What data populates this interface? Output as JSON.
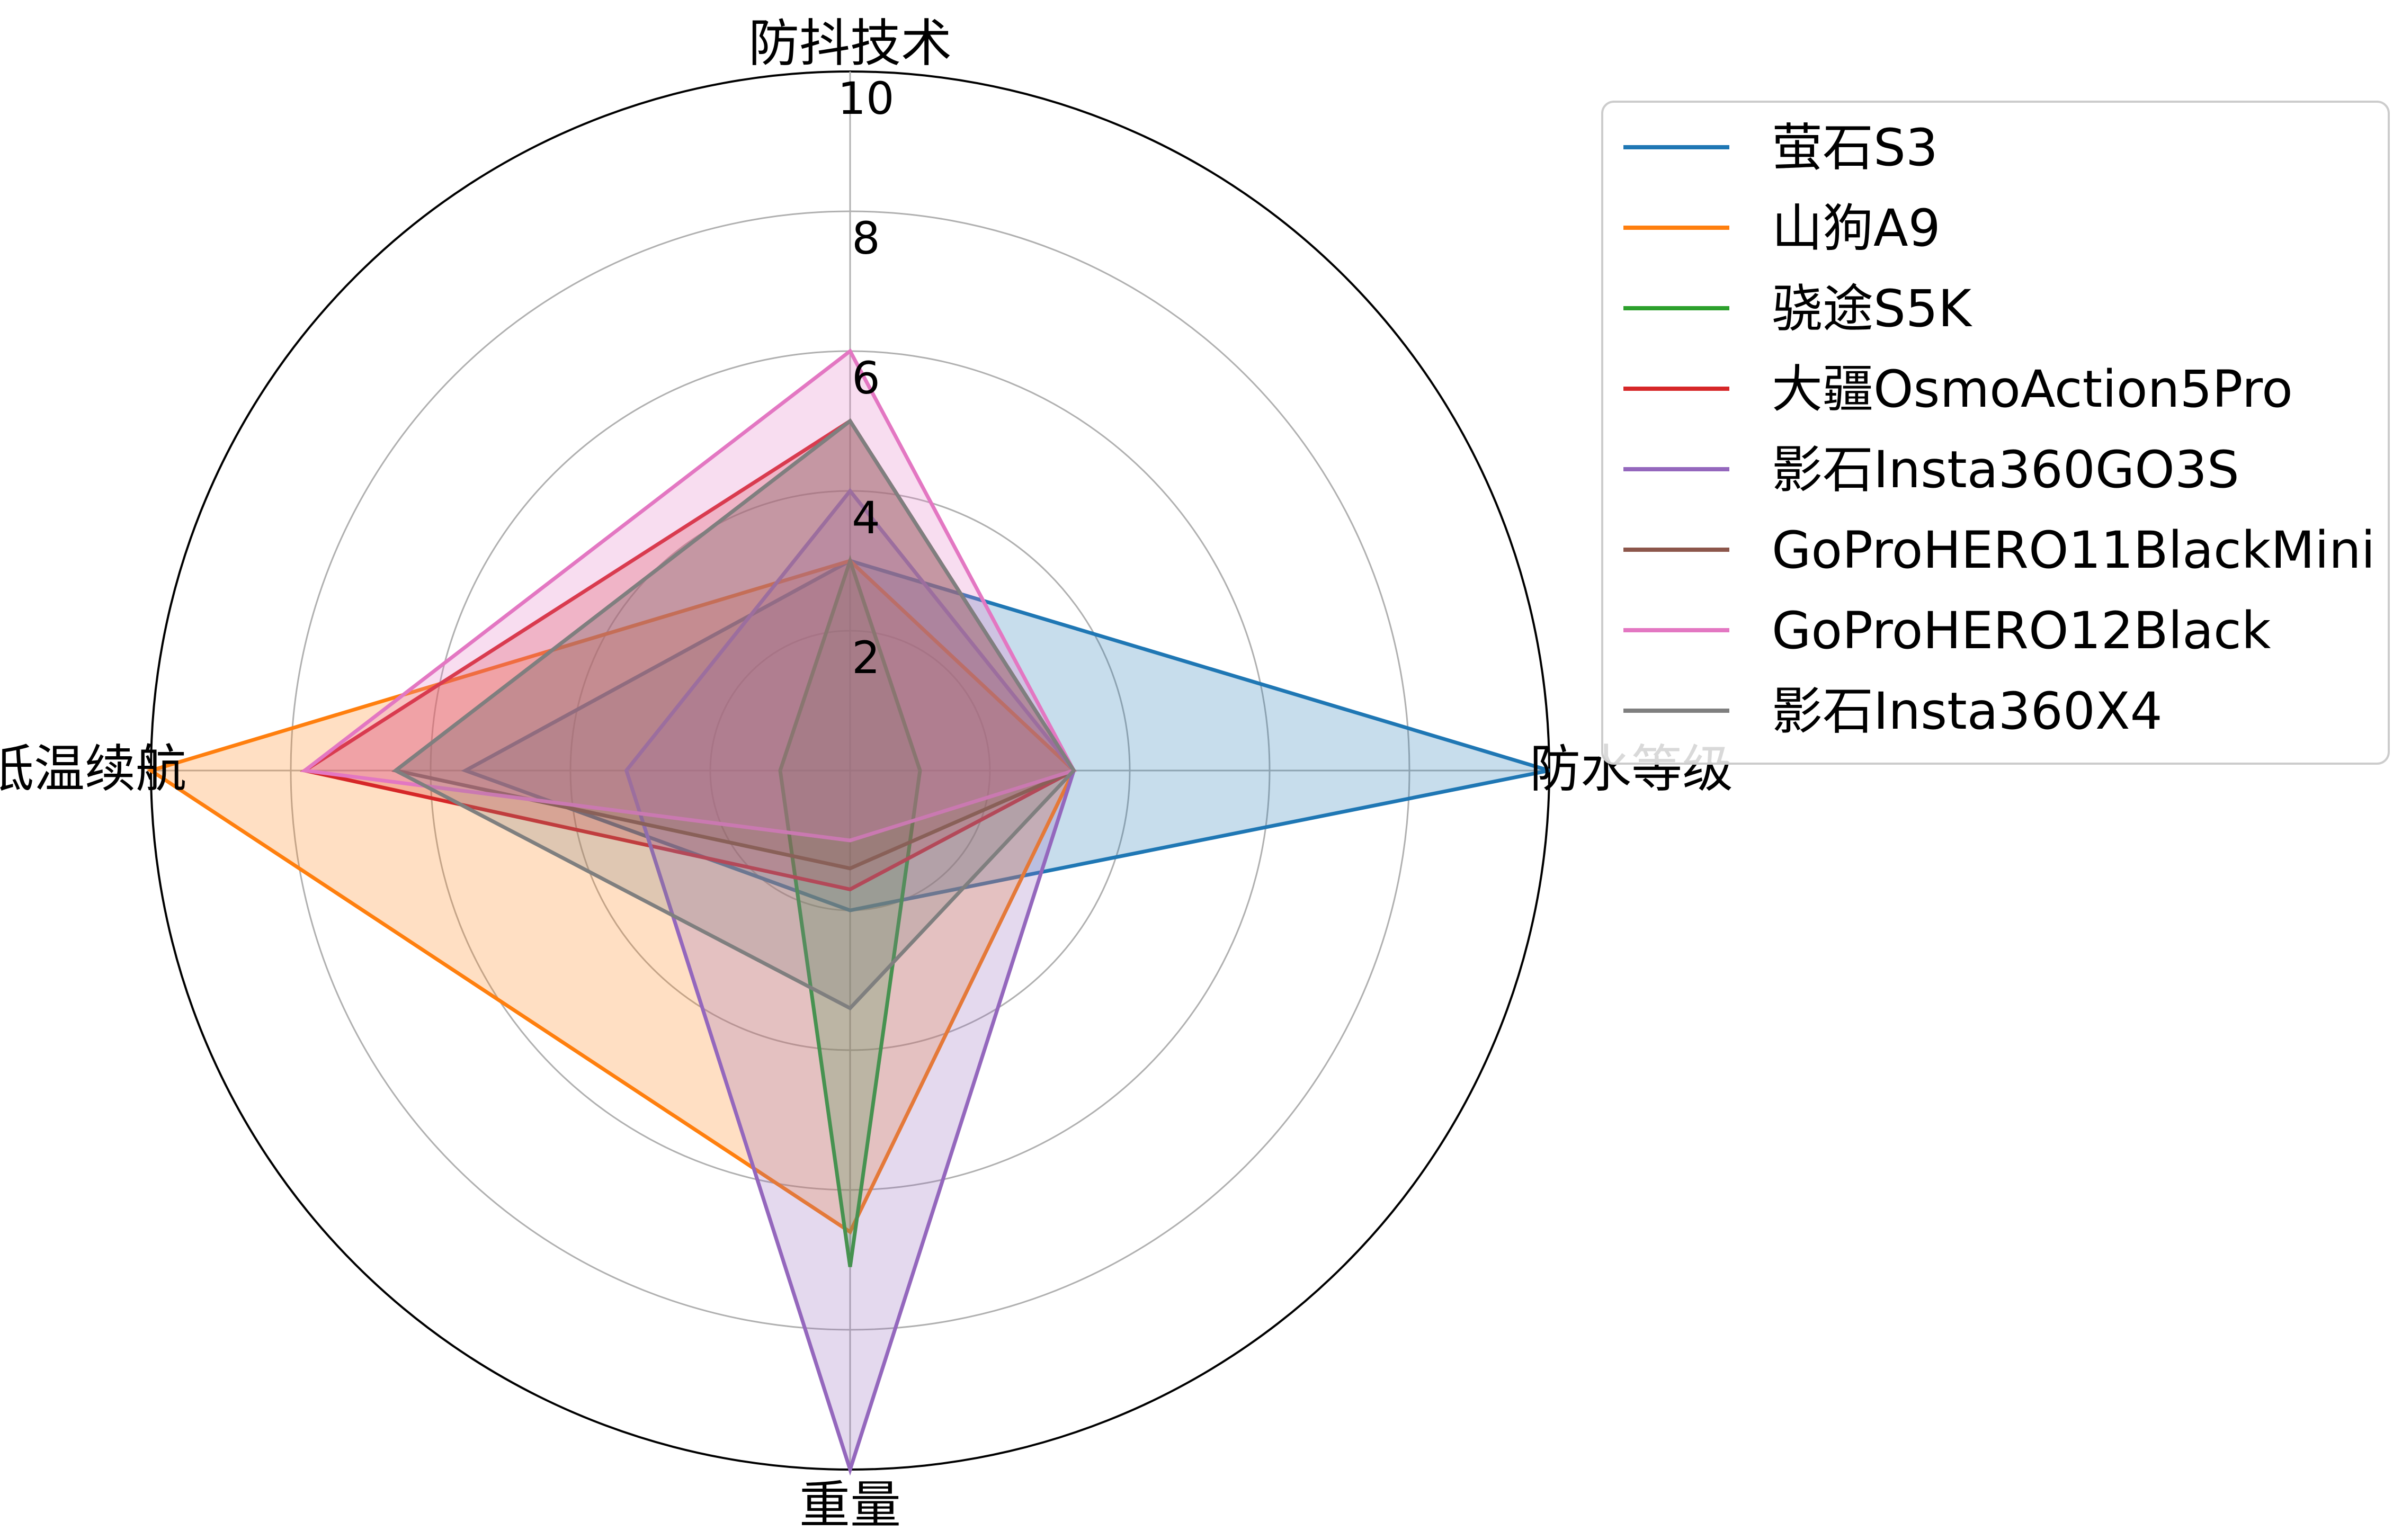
{
  "chart_data": {
    "type": "radar",
    "axes": [
      "防抖技术",
      "防水等级",
      "重量",
      "低温续航"
    ],
    "rlim": [
      0,
      10
    ],
    "rticks": [
      "2",
      "4",
      "6",
      "8",
      "10"
    ],
    "grid": true,
    "legend_position": "right",
    "series": [
      {
        "name": "萤石S3",
        "color": "#1f77b4",
        "values": [
          3,
          10,
          2,
          5.5
        ]
      },
      {
        "name": "山狗A9",
        "color": "#ff7f0e",
        "values": [
          3,
          3.2,
          6.6,
          10
        ]
      },
      {
        "name": "骁途S5K",
        "color": "#2ca02c",
        "values": [
          3,
          1,
          7.1,
          1
        ]
      },
      {
        "name": "大疆OsmoAction5Pro",
        "color": "#d62728",
        "values": [
          5,
          3.2,
          1.7,
          7.8
        ]
      },
      {
        "name": "影石Insta360GO3S",
        "color": "#9467bd",
        "values": [
          4,
          3.2,
          10,
          3.2
        ]
      },
      {
        "name": "GoProHERO11BlackMini",
        "color": "#8c564b",
        "values": [
          5,
          3.2,
          1.4,
          6.5
        ]
      },
      {
        "name": "GoProHERO12Black",
        "color": "#e377c2",
        "values": [
          6,
          3.2,
          1,
          7.8
        ]
      },
      {
        "name": "影石Insta360X4",
        "color": "#7f7f7f",
        "values": [
          5,
          3.2,
          3.4,
          6.5
        ]
      }
    ]
  }
}
